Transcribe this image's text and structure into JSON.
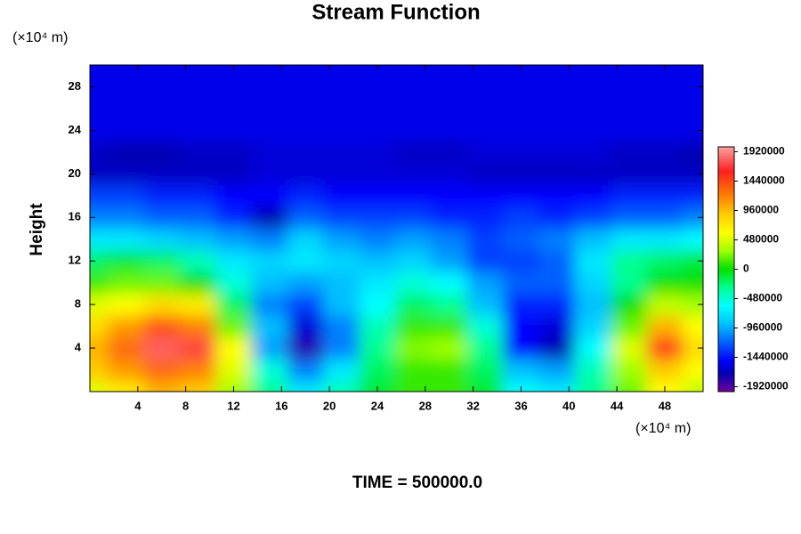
{
  "chart_data": {
    "type": "contour",
    "title": "Stream Function",
    "y_label": "Height",
    "y_unit": "(×10⁴ m)",
    "x_unit": "(×10⁴ m)",
    "footer": "TIME = 500000.0",
    "xlim": [
      0,
      51.2
    ],
    "ylim": [
      0,
      30
    ],
    "xticks": [
      4,
      8,
      12,
      16,
      20,
      24,
      28,
      32,
      36,
      40,
      44,
      48
    ],
    "yticks": [
      4,
      8,
      12,
      16,
      20,
      24,
      28
    ],
    "zlim": [
      -2000000,
      2000000
    ],
    "zticks": [
      1920000,
      1440000,
      960000,
      480000,
      0,
      -480000,
      -960000,
      -1440000,
      -1920000
    ],
    "colormap": [
      {
        "value": -2000000,
        "color": "#7000a0"
      },
      {
        "value": -1700000,
        "color": "#0000b0"
      },
      {
        "value": -1500000,
        "color": "#0000ff"
      },
      {
        "value": -1200000,
        "color": "#0060ff"
      },
      {
        "value": -900000,
        "color": "#00c0ff"
      },
      {
        "value": -600000,
        "color": "#00ffff"
      },
      {
        "value": -300000,
        "color": "#00ff90"
      },
      {
        "value": 0,
        "color": "#00e000"
      },
      {
        "value": 300000,
        "color": "#a0ff00"
      },
      {
        "value": 600000,
        "color": "#ffff00"
      },
      {
        "value": 900000,
        "color": "#ffcc00"
      },
      {
        "value": 1200000,
        "color": "#ff8000"
      },
      {
        "value": 1600000,
        "color": "#ff2020"
      },
      {
        "value": 2000000,
        "color": "#ffa0a0"
      }
    ],
    "x": [
      0,
      3,
      6,
      9,
      12,
      15,
      18,
      21,
      24,
      27,
      30,
      33,
      36,
      39,
      42,
      45,
      48,
      51
    ],
    "y": [
      0,
      2,
      4,
      6,
      8,
      10,
      12,
      14,
      16,
      18,
      20,
      22,
      24,
      26,
      28,
      30
    ],
    "z": [
      [
        500000,
        700000,
        1000000,
        900000,
        300000,
        -300000,
        -700000,
        -400000,
        -100000,
        100000,
        100000,
        -100000,
        -600000,
        -700000,
        -300000,
        200000,
        600000,
        400000
      ],
      [
        900000,
        1100000,
        1300000,
        1200000,
        500000,
        -500000,
        -1100000,
        -700000,
        -200000,
        100000,
        100000,
        -200000,
        -900000,
        -1000000,
        -400000,
        300000,
        900000,
        600000
      ],
      [
        1000000,
        1300000,
        1800000,
        1700000,
        600000,
        -1000000,
        -1800000,
        -1100000,
        -300000,
        250000,
        300000,
        -300000,
        -1500000,
        -1700000,
        -600000,
        500000,
        1500000,
        800000
      ],
      [
        800000,
        1100000,
        1400000,
        1200000,
        200000,
        -900000,
        -1600000,
        -1100000,
        -400000,
        100000,
        100000,
        -500000,
        -1500000,
        -1600000,
        -800000,
        200000,
        1000000,
        600000
      ],
      [
        500000,
        600000,
        800000,
        700000,
        -200000,
        -1100000,
        -1300000,
        -900000,
        -600000,
        -200000,
        -300000,
        -900000,
        -1400000,
        -1400000,
        -900000,
        0,
        400000,
        300000
      ],
      [
        100000,
        200000,
        200000,
        0,
        -500000,
        -900000,
        -1000000,
        -900000,
        -700000,
        -500000,
        -600000,
        -1000000,
        -1200000,
        -1200000,
        -800000,
        -300000,
        0,
        0
      ],
      [
        -200000,
        -100000,
        -200000,
        -400000,
        -700000,
        -800000,
        -700000,
        -800000,
        -900000,
        -800000,
        -1000000,
        -1300000,
        -1300000,
        -1200000,
        -700000,
        -300000,
        -200000,
        -100000
      ],
      [
        -700000,
        -700000,
        -800000,
        -900000,
        -1000000,
        -1100000,
        -800000,
        -1000000,
        -1100000,
        -1000000,
        -1100000,
        -1300000,
        -1200000,
        -1100000,
        -900000,
        -700000,
        -700000,
        -600000
      ],
      [
        -1100000,
        -1100000,
        -1200000,
        -1200000,
        -1400000,
        -1700000,
        -1200000,
        -1300000,
        -1300000,
        -1300000,
        -1400000,
        -1400000,
        -1300000,
        -1400000,
        -1300000,
        -1200000,
        -1200000,
        -1100000
      ],
      [
        -1300000,
        -1300000,
        -1400000,
        -1400000,
        -1500000,
        -1500000,
        -1400000,
        -1500000,
        -1500000,
        -1500000,
        -1500000,
        -1500000,
        -1500000,
        -1500000,
        -1500000,
        -1400000,
        -1400000,
        -1400000
      ],
      [
        -1650000,
        -1650000,
        -1650000,
        -1650000,
        -1650000,
        -1600000,
        -1600000,
        -1600000,
        -1600000,
        -1600000,
        -1600000,
        -1650000,
        -1650000,
        -1650000,
        -1650000,
        -1650000,
        -1650000,
        -1650000
      ],
      [
        -1650000,
        -1700000,
        -1700000,
        -1650000,
        -1650000,
        -1600000,
        -1600000,
        -1600000,
        -1600000,
        -1650000,
        -1650000,
        -1600000,
        -1600000,
        -1600000,
        -1600000,
        -1650000,
        -1650000,
        -1700000
      ],
      [
        -1550000,
        -1550000,
        -1550000,
        -1550000,
        -1550000,
        -1550000,
        -1550000,
        -1550000,
        -1550000,
        -1550000,
        -1550000,
        -1550000,
        -1550000,
        -1550000,
        -1550000,
        -1550000,
        -1550000,
        -1550000
      ],
      [
        -1550000,
        -1550000,
        -1550000,
        -1550000,
        -1550000,
        -1550000,
        -1550000,
        -1550000,
        -1550000,
        -1550000,
        -1550000,
        -1550000,
        -1550000,
        -1550000,
        -1550000,
        -1550000,
        -1550000,
        -1550000
      ],
      [
        -1550000,
        -1550000,
        -1550000,
        -1550000,
        -1550000,
        -1550000,
        -1550000,
        -1550000,
        -1550000,
        -1550000,
        -1550000,
        -1550000,
        -1550000,
        -1550000,
        -1550000,
        -1550000,
        -1550000,
        -1550000
      ],
      [
        -1550000,
        -1550000,
        -1550000,
        -1550000,
        -1550000,
        -1550000,
        -1550000,
        -1550000,
        -1550000,
        -1550000,
        -1550000,
        -1550000,
        -1550000,
        -1550000,
        -1550000,
        -1550000,
        -1550000,
        -1550000
      ]
    ]
  }
}
